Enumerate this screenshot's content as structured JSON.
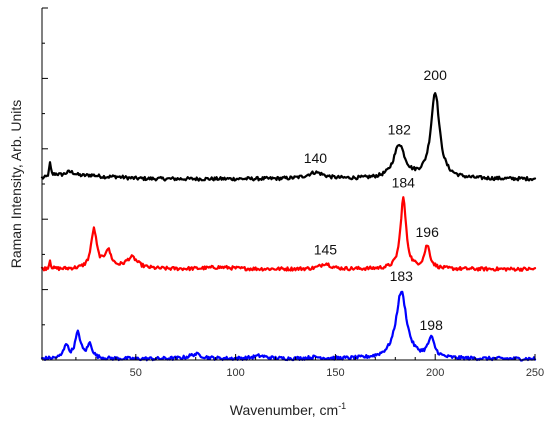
{
  "chart_data": {
    "type": "line",
    "title": "",
    "xlabel": "Wavenumber, cm",
    "xlabel_superscript": "-1",
    "ylabel": "Raman Intensity, Arb. Units",
    "xlim": [
      3,
      250
    ],
    "ylim": [
      0,
      100
    ],
    "x_ticks": [
      50,
      100,
      150,
      200,
      250
    ],
    "x_tick_labels": [
      "50",
      "100",
      "150",
      "200",
      "250"
    ],
    "y_tick_labels": "none",
    "grid": false,
    "legend": "none",
    "series": [
      {
        "color": "#000000",
        "baseline": 51.4,
        "noise": 0.5,
        "peaks": [
          {
            "x": 7,
            "h": 4.0,
            "w": 0.5
          },
          {
            "x": 10,
            "h": 0.9,
            "w": 2.0
          },
          {
            "x": 17,
            "h": 1.8,
            "w": 4.0
          },
          {
            "x": 28,
            "h": 0.8,
            "w": 5.0
          },
          {
            "x": 40,
            "h": 0.5,
            "w": 6.0
          },
          {
            "x": 140,
            "h": 1.8,
            "w": 5.0
          },
          {
            "x": 182,
            "h": 9.5,
            "w": 3.3
          },
          {
            "x": 200,
            "h": 24.5,
            "w": 2.6
          }
        ]
      },
      {
        "color": "#ff0000",
        "baseline": 25.8,
        "noise": 0.5,
        "peaks": [
          {
            "x": 7,
            "h": 2.5,
            "w": 0.5
          },
          {
            "x": 29,
            "h": 11.0,
            "w": 1.7
          },
          {
            "x": 36,
            "h": 5.0,
            "w": 2.0
          },
          {
            "x": 48,
            "h": 3.2,
            "w": 3.5
          },
          {
            "x": 92,
            "h": 0.5,
            "w": 8.0
          },
          {
            "x": 145,
            "h": 1.6,
            "w": 3.0
          },
          {
            "x": 184,
            "h": 20.0,
            "w": 1.7
          },
          {
            "x": 196,
            "h": 6.5,
            "w": 1.7
          }
        ]
      },
      {
        "color": "#0000ff",
        "baseline": 0.3,
        "noise": 0.5,
        "peaks": [
          {
            "x": 15,
            "h": 4.0,
            "w": 1.3
          },
          {
            "x": 21,
            "h": 7.2,
            "w": 1.7
          },
          {
            "x": 27,
            "h": 4.0,
            "w": 1.5
          },
          {
            "x": 80,
            "h": 1.3,
            "w": 4.0
          },
          {
            "x": 112,
            "h": 0.8,
            "w": 4.0
          },
          {
            "x": 140,
            "h": 0.4,
            "w": 4.0
          },
          {
            "x": 183,
            "h": 19.0,
            "w": 3.2
          },
          {
            "x": 198,
            "h": 5.4,
            "w": 2.0
          }
        ]
      }
    ],
    "annotations": [
      {
        "text": "200",
        "x": 200,
        "y": 79.5,
        "series": 0
      },
      {
        "text": "182",
        "x": 182,
        "y": 64.0,
        "series": 0
      },
      {
        "text": "140",
        "x": 140,
        "y": 56.0,
        "series": 0
      },
      {
        "text": "184",
        "x": 184,
        "y": 49.0,
        "series": 1
      },
      {
        "text": "196",
        "x": 196,
        "y": 35.0,
        "series": 1
      },
      {
        "text": "145",
        "x": 145,
        "y": 30.0,
        "series": 1
      },
      {
        "text": "183",
        "x": 183,
        "y": 22.5,
        "series": 2
      },
      {
        "text": "198",
        "x": 198,
        "y": 8.5,
        "series": 2
      }
    ]
  }
}
